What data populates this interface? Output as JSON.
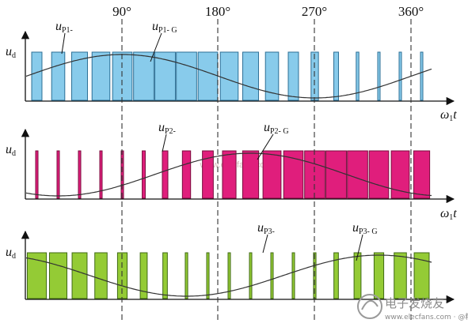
{
  "angle_labels": [
    "90°",
    "180°",
    "270°",
    "360°"
  ],
  "axis_symbol": "u",
  "axis_symbol_sub": "d",
  "time_axis_symbol": "ω",
  "time_axis_sub": "1",
  "time_axis_var": "t",
  "panels": [
    {
      "id": "p1",
      "pulse_label": "u",
      "pulse_label_sub": "P1-",
      "sine_label": "u",
      "sine_label_sub": "P1- G",
      "colors": {
        "fill": "#88cbeb",
        "stroke": "#2c6f96"
      },
      "duty": [
        0.5,
        0.64,
        0.77,
        0.87,
        0.95,
        0.99,
        1.0,
        0.99,
        0.95,
        0.87,
        0.77,
        0.64,
        0.5,
        0.36,
        0.23,
        0.13,
        0.05,
        0.01,
        0.0,
        0.01,
        0.05,
        0.13,
        0.23,
        0.36
      ],
      "sine_phase": 0
    },
    {
      "id": "p2",
      "pulse_label": "u",
      "pulse_label_sub": "P2-",
      "sine_label": "u",
      "sine_label_sub": "P2- G",
      "colors": {
        "fill": "#e01e7c",
        "stroke": "#7a0c3e"
      },
      "duty": [
        0.07,
        0.02,
        0.0,
        0.02,
        0.07,
        0.15,
        0.27,
        0.4,
        0.53,
        0.66,
        0.78,
        0.88,
        0.95,
        0.99,
        1.0,
        0.99,
        0.95,
        0.88,
        0.78,
        0.66,
        0.53,
        0.4,
        0.27,
        0.15
      ],
      "sine_phase": 120
    },
    {
      "id": "p3",
      "pulse_label": "u",
      "pulse_label_sub": "P3-",
      "sine_label": "u",
      "sine_label_sub": "P3- G",
      "colors": {
        "fill": "#94cb35",
        "stroke": "#3f6a14"
      },
      "duty": [
        0.93,
        0.85,
        0.73,
        0.6,
        0.47,
        0.34,
        0.22,
        0.12,
        0.05,
        0.01,
        0.0,
        0.01,
        0.05,
        0.12,
        0.22,
        0.34,
        0.47,
        0.6,
        0.73,
        0.85,
        0.93,
        0.98,
        1.0,
        0.98
      ],
      "sine_phase": 240
    }
  ],
  "guide_color": "#333333",
  "watermark_text": "www.elecfans.com",
  "logo_text_main": "电子发烧友",
  "logo_text_sub": "www.elecfans.com  ·  @精选电子"
}
